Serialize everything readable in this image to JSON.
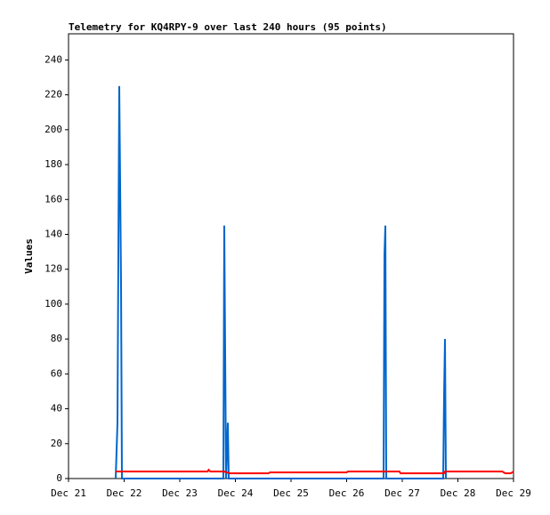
{
  "chart_data": {
    "type": "line",
    "title": "Telemetry for KQ4RPY-9 over last 240 hours (95 points)",
    "y_label": "Values",
    "xlim": [
      21,
      29
    ],
    "xticks": [
      {
        "value": 21,
        "label": "Dec 21"
      },
      {
        "value": 22,
        "label": "Dec 22"
      },
      {
        "value": 23,
        "label": "Dec 23"
      },
      {
        "value": 24,
        "label": "Dec 24"
      },
      {
        "value": 25,
        "label": "Dec 25"
      },
      {
        "value": 26,
        "label": "Dec 26"
      },
      {
        "value": 27,
        "label": "Dec 27"
      },
      {
        "value": 28,
        "label": "Dec 28"
      },
      {
        "value": 29,
        "label": "Dec 29"
      }
    ],
    "ylim": [
      0,
      255
    ],
    "yticks": [
      0,
      20,
      40,
      60,
      80,
      100,
      120,
      140,
      160,
      180,
      200,
      220,
      240
    ],
    "series": [
      {
        "color": "#0066cc",
        "x": [
          21.848,
          21.864,
          21.88,
          21.912,
          21.944,
          21.96,
          23.784,
          23.8,
          23.816,
          23.832,
          23.848,
          23.864,
          23.88,
          26.664,
          26.68,
          26.696,
          26.712,
          27.736,
          27.752,
          27.768,
          27.784
        ],
        "values": [
          0,
          16,
          32,
          225,
          112,
          0,
          0,
          145,
          72,
          0,
          16,
          32,
          0,
          0,
          128,
          145,
          0,
          0,
          48,
          80,
          0
        ]
      },
      {
        "color": "#ff0000",
        "x": [
          21.85,
          23.5,
          23.52,
          23.55,
          23.8,
          23.9,
          24.6,
          24.62,
          26.0,
          26.02,
          26.95,
          26.97,
          27.75,
          27.77,
          28.8,
          28.85,
          28.95,
          29.0
        ],
        "values": [
          4,
          4,
          5,
          4,
          4,
          3,
          3,
          3.5,
          3.5,
          4,
          4,
          3,
          3,
          4,
          4,
          3,
          3,
          4
        ]
      }
    ]
  }
}
